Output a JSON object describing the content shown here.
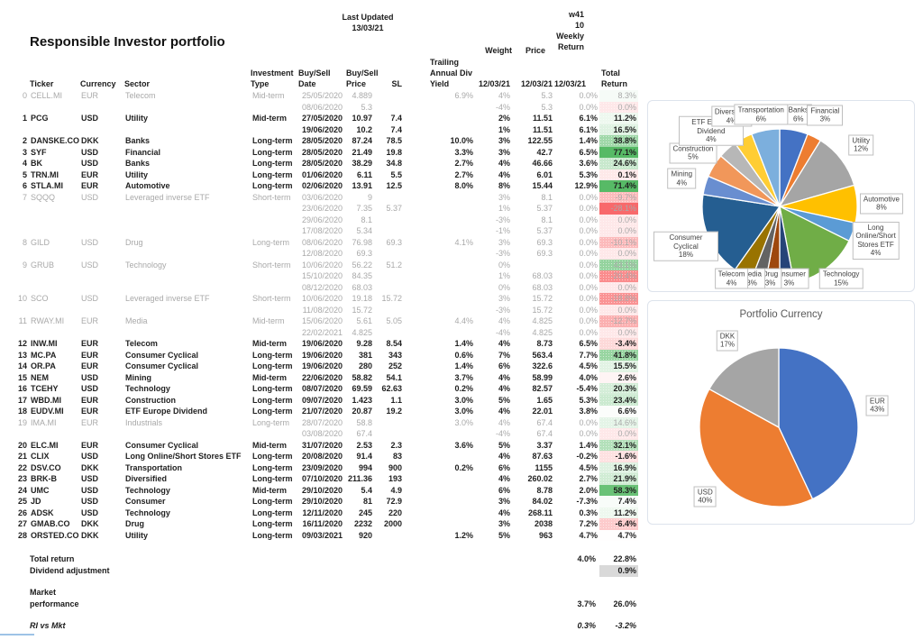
{
  "title": "Responsible Investor portfolio",
  "header": {
    "last_updated": {
      "label": "Last Updated",
      "value": "13/03/21"
    },
    "week": {
      "line1": "w41",
      "line2": "10",
      "line3": "Weekly",
      "line4": "Return"
    },
    "weight_label": "Weight",
    "price_label": "Price",
    "columns": {
      "ticker": "Ticker",
      "currency": "Currency",
      "sector": "Sector",
      "investment": [
        "Investment",
        "Type"
      ],
      "buysell_date": [
        "Buy/Sell",
        "Date"
      ],
      "buysell_price": [
        "Buy/Sell",
        "Price"
      ],
      "sl": "SL",
      "div_yield": [
        "Trailing",
        "Annual Div",
        "Yield"
      ],
      "weight_date": "12/03/21",
      "price_date": "12/03/21",
      "weekly_date": "12/03/21",
      "total": [
        "Total",
        "Return"
      ]
    }
  },
  "table": {
    "lines": [
      {
        "n": "0",
        "t": "CELL.MI",
        "c": "EUR",
        "s": "Telecom",
        "it": "Mid-term",
        "d": "25/05/2020",
        "bp": "4.889",
        "sl": "",
        "y": "6.9%",
        "w": "4%",
        "p": "5.3",
        "wr": "0.0%",
        "tr": "8.3%",
        "trv": 8.3,
        "g": 1
      },
      {
        "d": "08/06/2020",
        "bp": "5.3",
        "w": "-4%",
        "p": "5.3",
        "wr": "0.0%",
        "tr": "0.0%",
        "trv": 0,
        "g": 1
      },
      {
        "n": "1",
        "t": "PCG",
        "c": "USD",
        "s": "Utility",
        "it": "Mid-term",
        "d": "27/05/2020",
        "bp": "10.97",
        "sl": "7.4",
        "w": "2%",
        "p": "11.51",
        "wr": "6.1%",
        "tr": "11.2%",
        "trv": 11.2
      },
      {
        "d": "19/06/2020",
        "bp": "10.2",
        "sl": "7.4",
        "w": "1%",
        "p": "11.51",
        "wr": "6.1%",
        "tr": "16.5%",
        "trv": 16.5
      },
      {
        "n": "2",
        "t": "DANSKE.CO",
        "c": "DKK",
        "s": "Banks",
        "it": "Long-term",
        "d": "28/05/2020",
        "bp": "87.24",
        "sl": "78.5",
        "y": "10.0%",
        "w": "3%",
        "p": "122.55",
        "wr": "1.4%",
        "tr": "38.8%",
        "trv": 38.8
      },
      {
        "n": "3",
        "t": "SYF",
        "c": "USD",
        "s": "Financial",
        "it": "Long-term",
        "d": "28/05/2020",
        "bp": "21.49",
        "sl": "19.8",
        "y": "3.3%",
        "w": "3%",
        "p": "42.7",
        "wr": "6.5%",
        "tr": "77.1%",
        "trv": 77.1
      },
      {
        "n": "4",
        "t": "BK",
        "c": "USD",
        "s": "Banks",
        "it": "Long-term",
        "d": "28/05/2020",
        "bp": "38.29",
        "sl": "34.8",
        "y": "2.7%",
        "w": "4%",
        "p": "46.66",
        "wr": "3.6%",
        "tr": "24.6%",
        "trv": 24.6
      },
      {
        "n": "5",
        "t": "TRN.MI",
        "c": "EUR",
        "s": "Utility",
        "it": "Long-term",
        "d": "01/06/2020",
        "bp": "6.11",
        "sl": "5.5",
        "y": "2.7%",
        "w": "4%",
        "p": "6.01",
        "wr": "5.3%",
        "tr": "0.1%",
        "trv": 0.1
      },
      {
        "n": "6",
        "t": "STLA.MI",
        "c": "EUR",
        "s": "Automotive",
        "it": "Long-term",
        "d": "02/06/2020",
        "bp": "13.91",
        "sl": "12.5",
        "y": "8.0%",
        "w": "8%",
        "p": "15.44",
        "wr": "12.9%",
        "tr": "71.4%",
        "trv": 71.4
      },
      {
        "n": "7",
        "t": "SQQQ",
        "c": "USD",
        "s": "Leveraged inverse ETF",
        "it": "Short-term",
        "d": "03/06/2020",
        "bp": "9",
        "w": "3%",
        "p": "8.1",
        "wr": "0.0%",
        "tr": "-9.7%",
        "trv": -9.7,
        "g": 1
      },
      {
        "d": "23/06/2020",
        "bp": "7.35",
        "sl": "5.37",
        "w": "1%",
        "p": "5.37",
        "wr": "0.0%",
        "tr": "-28.1%",
        "trv": -28.1,
        "g": 1
      },
      {
        "d": "29/06/2020",
        "bp": "8.1",
        "w": "-3%",
        "p": "8.1",
        "wr": "0.0%",
        "tr": "0.0%",
        "trv": 0,
        "g": 1
      },
      {
        "d": "17/08/2020",
        "bp": "5.34",
        "w": "-1%",
        "p": "5.37",
        "wr": "0.0%",
        "tr": "0.0%",
        "trv": 0,
        "g": 1
      },
      {
        "n": "8",
        "t": "GILD",
        "c": "USD",
        "s": "Drug",
        "it": "Long-term",
        "d": "08/06/2020",
        "bp": "76.98",
        "sl": "69.3",
        "y": "4.1%",
        "w": "3%",
        "p": "69.3",
        "wr": "0.0%",
        "tr": "-10.1%",
        "trv": -10.1,
        "g": 1
      },
      {
        "d": "12/08/2020",
        "bp": "69.3",
        "w": "-3%",
        "p": "69.3",
        "wr": "0.0%",
        "tr": "0.0%",
        "trv": 0,
        "g": 1
      },
      {
        "n": "9",
        "t": "GRUB",
        "c": "USD",
        "s": "Technology",
        "it": "Short-term",
        "d": "10/06/2020",
        "bp": "56.22",
        "sl": "51.2",
        "w": "0%",
        "p": "",
        "wr": "0.0%",
        "tr": "43.1%",
        "trv": 43.1,
        "g": 1
      },
      {
        "d": "15/10/2020",
        "bp": "84.35",
        "w": "1%",
        "p": "68.03",
        "wr": "0.0%",
        "tr": "-20.4%",
        "trv": -20.4,
        "g": 1
      },
      {
        "d": "08/12/2020",
        "bp": "68.03",
        "w": "0%",
        "p": "68.03",
        "wr": "0.0%",
        "tr": "0.0%",
        "trv": 0,
        "g": 1
      },
      {
        "n": "10",
        "t": "SCO",
        "c": "USD",
        "s": "Leveraged inverse ETF",
        "it": "Short-term",
        "d": "10/06/2020",
        "bp": "19.18",
        "sl": "15.72",
        "w": "3%",
        "p": "15.72",
        "wr": "0.0%",
        "tr": "-18.8%",
        "trv": -18.8,
        "g": 1
      },
      {
        "d": "11/08/2020",
        "bp": "15.72",
        "w": "-3%",
        "p": "15.72",
        "wr": "0.0%",
        "tr": "0.0%",
        "trv": 0,
        "g": 1
      },
      {
        "n": "11",
        "t": "RWAY.MI",
        "c": "EUR",
        "s": "Media",
        "it": "Mid-term",
        "d": "15/06/2020",
        "bp": "5.61",
        "sl": "5.05",
        "y": "4.4%",
        "w": "4%",
        "p": "4.825",
        "wr": "0.0%",
        "tr": "-12.7%",
        "trv": -12.7,
        "g": 1
      },
      {
        "d": "22/02/2021",
        "bp": "4.825",
        "w": "-4%",
        "p": "4.825",
        "wr": "0.0%",
        "tr": "0.0%",
        "trv": 0,
        "g": 1
      },
      {
        "n": "12",
        "t": "INW.MI",
        "c": "EUR",
        "s": "Telecom",
        "it": "Mid-term",
        "d": "19/06/2020",
        "bp": "9.28",
        "sl": "8.54",
        "y": "1.4%",
        "w": "4%",
        "p": "8.73",
        "wr": "6.5%",
        "tr": "-3.4%",
        "trv": -3.4
      },
      {
        "n": "13",
        "t": "MC.PA",
        "c": "EUR",
        "s": "Consumer Cyclical",
        "it": "Long-term",
        "d": "19/06/2020",
        "bp": "381",
        "sl": "343",
        "y": "0.6%",
        "w": "7%",
        "p": "563.4",
        "wr": "7.7%",
        "tr": "41.8%",
        "trv": 41.8
      },
      {
        "n": "14",
        "t": "OR.PA",
        "c": "EUR",
        "s": "Consumer Cyclical",
        "it": "Long-term",
        "d": "19/06/2020",
        "bp": "280",
        "sl": "252",
        "y": "1.4%",
        "w": "6%",
        "p": "322.6",
        "wr": "4.5%",
        "tr": "15.5%",
        "trv": 15.5
      },
      {
        "n": "15",
        "t": "NEM",
        "c": "USD",
        "s": "Mining",
        "it": "Mid-term",
        "d": "22/06/2020",
        "bp": "58.82",
        "sl": "54.1",
        "y": "3.7%",
        "w": "4%",
        "p": "58.99",
        "wr": "4.0%",
        "tr": "2.6%",
        "trv": 2.6
      },
      {
        "n": "16",
        "t": "TCEHY",
        "c": "USD",
        "s": "Technology",
        "it": "Long-term",
        "d": "08/07/2020",
        "bp": "69.59",
        "sl": "62.63",
        "y": "0.2%",
        "w": "4%",
        "p": "82.57",
        "wr": "-5.4%",
        "tr": "20.3%",
        "trv": 20.3
      },
      {
        "n": "17",
        "t": "WBD.MI",
        "c": "EUR",
        "s": "Construction",
        "it": "Long-term",
        "d": "09/07/2020",
        "bp": "1.423",
        "sl": "1.1",
        "y": "3.0%",
        "w": "5%",
        "p": "1.65",
        "wr": "5.3%",
        "tr": "23.4%",
        "trv": 23.4
      },
      {
        "n": "18",
        "t": "EUDV.MI",
        "c": "EUR",
        "s": "ETF Europe Dividend",
        "it": "Long-term",
        "d": "21/07/2020",
        "bp": "20.87",
        "sl": "19.2",
        "y": "3.0%",
        "w": "4%",
        "p": "22.01",
        "wr": "3.8%",
        "tr": "6.6%",
        "trv": 6.6
      },
      {
        "n": "19",
        "t": "IMA.MI",
        "c": "EUR",
        "s": "Industrials",
        "it": "Long-term",
        "d": "28/07/2020",
        "bp": "58.8",
        "y": "3.0%",
        "w": "4%",
        "p": "67.4",
        "wr": "0.0%",
        "tr": "14.6%",
        "trv": 14.6,
        "g": 1
      },
      {
        "d": "03/08/2020",
        "bp": "67.4",
        "w": "-4%",
        "p": "67.4",
        "wr": "0.0%",
        "tr": "0.0%",
        "trv": 0,
        "g": 1
      },
      {
        "n": "20",
        "t": "ELC.MI",
        "c": "EUR",
        "s": "Consumer Cyclical",
        "it": "Mid-term",
        "d": "31/07/2020",
        "bp": "2.53",
        "sl": "2.3",
        "y": "3.6%",
        "w": "5%",
        "p": "3.37",
        "wr": "1.4%",
        "tr": "32.1%",
        "trv": 32.1
      },
      {
        "n": "21",
        "t": "CLIX",
        "c": "USD",
        "s": "Long Online/Short Stores ETF",
        "it": "Long-term",
        "d": "20/08/2020",
        "bp": "91.4",
        "sl": "83",
        "w": "4%",
        "p": "87.63",
        "wr": "-0.2%",
        "tr": "-1.6%",
        "trv": -1.6
      },
      {
        "n": "22",
        "t": "DSV.CO",
        "c": "DKK",
        "s": "Transportation",
        "it": "Long-term",
        "d": "23/09/2020",
        "bp": "994",
        "sl": "900",
        "y": "0.2%",
        "w": "6%",
        "p": "1155",
        "wr": "4.5%",
        "tr": "16.9%",
        "trv": 16.9
      },
      {
        "n": "23",
        "t": "BRK-B",
        "c": "USD",
        "s": "Diversified",
        "it": "Long-term",
        "d": "07/10/2020",
        "bp": "211.36",
        "sl": "193",
        "w": "4%",
        "p": "260.02",
        "wr": "2.7%",
        "tr": "21.9%",
        "trv": 21.9
      },
      {
        "n": "24",
        "t": "UMC",
        "c": "USD",
        "s": "Technology",
        "it": "Mid-term",
        "d": "29/10/2020",
        "bp": "5.4",
        "sl": "4.9",
        "w": "6%",
        "p": "8.78",
        "wr": "2.0%",
        "tr": "58.3%",
        "trv": 58.3
      },
      {
        "n": "25",
        "t": "JD",
        "c": "USD",
        "s": "Consumer",
        "it": "Long-term",
        "d": "29/10/2020",
        "bp": "81",
        "sl": "72.9",
        "w": "3%",
        "p": "84.02",
        "wr": "-7.3%",
        "tr": "7.4%",
        "trv": 7.4
      },
      {
        "n": "26",
        "t": "ADSK",
        "c": "USD",
        "s": "Technology",
        "it": "Long-term",
        "d": "12/11/2020",
        "bp": "245",
        "sl": "220",
        "w": "4%",
        "p": "268.11",
        "wr": "0.3%",
        "tr": "11.2%",
        "trv": 11.2
      },
      {
        "n": "27",
        "t": "GMAB.CO",
        "c": "DKK",
        "s": "Drug",
        "it": "Long-term",
        "d": "16/11/2020",
        "bp": "2232",
        "sl": "2000",
        "w": "3%",
        "p": "2038",
        "wr": "7.2%",
        "tr": "-6.4%",
        "trv": -6.4
      },
      {
        "n": "28",
        "t": "ORSTED.CO",
        "c": "DKK",
        "s": "Utility",
        "it": "Long-term",
        "d": "09/03/2021",
        "bp": "920",
        "sl": "",
        "y": "1.2%",
        "w": "5%",
        "p": "963",
        "wr": "4.7%",
        "tr": "4.7%",
        "trv": 4.7
      }
    ]
  },
  "summary": {
    "total_return": {
      "label": "Total return",
      "weekly": "4.0%",
      "total": "22.8%"
    },
    "dividend_adjustment": {
      "label": "Dividend adjustment",
      "total": "0.9%",
      "total_bg": "#d9d9d9"
    },
    "market_performance": {
      "label1": "Market",
      "label2": "performance",
      "weekly": "3.7%",
      "total": "26.0%"
    },
    "ri_vs_mkt": {
      "label": "RI vs Mkt",
      "weekly": "0.3%",
      "total": "-3.2%"
    }
  },
  "chart_data": [
    {
      "type": "pie",
      "title": "",
      "name": "sector-allocation",
      "slices": [
        {
          "label": "Banks",
          "pct": "6%",
          "value": 6,
          "color": "#4472C4"
        },
        {
          "label": "Financial",
          "pct": "3%",
          "value": 3,
          "color": "#ED7D31"
        },
        {
          "label": "Utility",
          "pct": "12%",
          "value": 12,
          "color": "#A5A5A5"
        },
        {
          "label": "Automotive",
          "pct": "8%",
          "value": 8,
          "color": "#FFC000"
        },
        {
          "label": "Long Online/Short Stores ETF",
          "pct": "4%",
          "value": 4,
          "color": "#5B9BD5"
        },
        {
          "label": "Technology",
          "pct": "15%",
          "value": 15,
          "color": "#70AD47"
        },
        {
          "label": "Consumer",
          "pct": "3%",
          "value": 3,
          "color": "#264478"
        },
        {
          "label": "Drug",
          "pct": "3%",
          "value": 3,
          "color": "#9E480E"
        },
        {
          "label": "Media",
          "pct": "3%",
          "value": 3,
          "color": "#636363"
        },
        {
          "label": "Telecom",
          "pct": "4%",
          "value": 4,
          "color": "#997300"
        },
        {
          "label": "Consumer Cyclical",
          "pct": "18%",
          "value": 18,
          "color": "#255E91"
        },
        {
          "label": "Mining",
          "pct": "4%",
          "value": 4,
          "color": "#698ED0"
        },
        {
          "label": "Construction",
          "pct": "5%",
          "value": 5,
          "color": "#F1975A"
        },
        {
          "label": "ETF Europe Dividend",
          "pct": "4%",
          "value": 4,
          "color": "#B7B7B7"
        },
        {
          "label": "Diversified",
          "pct": "4%",
          "value": 4,
          "color": "#FFCD33"
        },
        {
          "label": "Transportation",
          "pct": "6%",
          "value": 6,
          "color": "#7CAFDD"
        }
      ]
    },
    {
      "type": "pie",
      "title": "Portfolio Currency",
      "name": "portfolio-currency",
      "slices": [
        {
          "label": "EUR",
          "pct": "43%",
          "value": 43,
          "color": "#4472C4"
        },
        {
          "label": "USD",
          "pct": "40%",
          "value": 40,
          "color": "#ED7D31"
        },
        {
          "label": "DKK",
          "pct": "17%",
          "value": 17,
          "color": "#A5A5A5"
        }
      ]
    }
  ]
}
